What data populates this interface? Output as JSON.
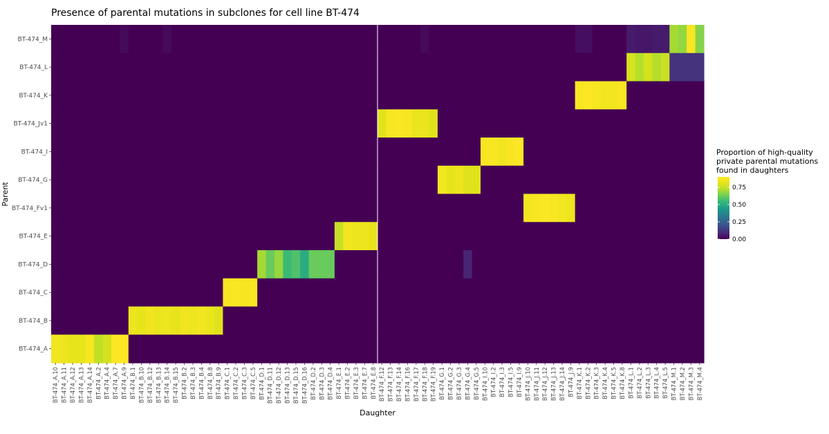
{
  "chart_data": {
    "type": "heatmap",
    "title": "Presence of parental mutations in subclones for cell line BT-474",
    "xlabel": "Daughter",
    "ylabel": "Parent",
    "legend": {
      "title_lines": [
        "Proportion of high-quality",
        "private parental mutations",
        "found in daughters"
      ],
      "ticks": [
        "0.75",
        "0.50",
        "0.25",
        "0.00"
      ],
      "tick_values": [
        0.75,
        0.5,
        0.25,
        0.0
      ],
      "range": [
        0,
        0.9
      ],
      "placement": "right"
    },
    "colors": {
      "viridis_low": "#440154",
      "viridis_mid": "#21908c",
      "viridis_high": "#fde725",
      "background_line": "#ffffff"
    },
    "grid": false,
    "parents": [
      "BT-474_M",
      "BT-474_L",
      "BT-474_K",
      "BT-474_Jv1",
      "BT-474_I",
      "BT-474_G",
      "BT-474_Fv1",
      "BT-474_E",
      "BT-474_D",
      "BT-474_C",
      "BT-474_B",
      "BT-474_A"
    ],
    "daughters": [
      "BT-474_A.10",
      "BT-474_A.11",
      "BT-474_A.12",
      "BT-474_A.13",
      "BT-474_A.14",
      "BT-474_A.2",
      "BT-474_A.4",
      "BT-474_A.7",
      "BT-474_A.9",
      "BT-474_B.1",
      "BT-474_B.10",
      "BT-474_B.12",
      "BT-474_B.13",
      "BT-474_B.14",
      "BT-474_B.15",
      "BT-474_B.2",
      "BT-474_B.3",
      "BT-474_B.4",
      "BT-474_B.8",
      "BT-474_B.9",
      "BT-474_C.1",
      "BT-474_C.2",
      "BT-474_C.3",
      "BT-474_C.5",
      "BT-474_D.1",
      "BT-474_D.11",
      "BT-474_D.12",
      "BT-474_D.13",
      "BT-474_D.15",
      "BT-474_D.16",
      "BT-474_D.2",
      "BT-474_D.3",
      "BT-474_D.4",
      "BT-474_E.1",
      "BT-474_E.2",
      "BT-474_E.3",
      "BT-474_E.7",
      "BT-474_E.8",
      "BT-474_F.12",
      "BT-474_F.13",
      "BT-474_F.14",
      "BT-474_F.16",
      "BT-474_F.17",
      "BT-474_F.18",
      "BT-474_F.19",
      "BT-474_G.1",
      "BT-474_G.2",
      "BT-474_G.3",
      "BT-474_G.4",
      "BT-474_G.5",
      "BT-474_I.10",
      "BT-474_I.2",
      "BT-474_I.3",
      "BT-474_I.5",
      "BT-474_I.9",
      "BT-474_J.10",
      "BT-474_J.11",
      "BT-474_J.12",
      "BT-474_J.13",
      "BT-474_J.14",
      "BT-474_J.9",
      "BT-474_K.1",
      "BT-474_K.2",
      "BT-474_K.3",
      "BT-474_K.4",
      "BT-474_K.5",
      "BT-474_K.8",
      "BT-474_L.1",
      "BT-474_L.2",
      "BT-474_L.3",
      "BT-474_L.4",
      "BT-474_L.5",
      "BT-474_M.1",
      "BT-474_M.2",
      "BT-474_M.3",
      "BT-474_M.4"
    ],
    "vertical_line_after": "BT-474_E.8",
    "default_value": 0.0,
    "cells": [
      {
        "parent": "BT-474_A",
        "values": {
          "BT-474_A.10": 0.86,
          "BT-474_A.11": 0.84,
          "BT-474_A.12": 0.82,
          "BT-474_A.13": 0.82,
          "BT-474_A.14": 0.88,
          "BT-474_A.2": 0.74,
          "BT-474_A.4": 0.78,
          "BT-474_A.7": 0.9,
          "BT-474_A.9": 0.9
        }
      },
      {
        "parent": "BT-474_B",
        "values": {
          "BT-474_B.1": 0.84,
          "BT-474_B.10": 0.82,
          "BT-474_B.12": 0.85,
          "BT-474_B.13": 0.83,
          "BT-474_B.14": 0.84,
          "BT-474_B.15": 0.82,
          "BT-474_B.2": 0.85,
          "BT-474_B.3": 0.84,
          "BT-474_B.4": 0.86,
          "BT-474_B.8": 0.83,
          "BT-474_B.9": 0.8
        }
      },
      {
        "parent": "BT-474_C",
        "values": {
          "BT-474_C.1": 0.88,
          "BT-474_C.2": 0.89,
          "BT-474_C.3": 0.87,
          "BT-474_C.5": 0.88
        }
      },
      {
        "parent": "BT-474_D",
        "values": {
          "BT-474_D.1": 0.7,
          "BT-474_D.11": 0.62,
          "BT-474_D.12": 0.68,
          "BT-474_D.13": 0.55,
          "BT-474_D.15": 0.58,
          "BT-474_D.16": 0.5,
          "BT-474_D.2": 0.62,
          "BT-474_D.3": 0.62,
          "BT-474_D.4": 0.62
        }
      },
      {
        "parent": "BT-474_E",
        "values": {
          "BT-474_E.1": 0.75,
          "BT-474_E.2": 0.86,
          "BT-474_E.3": 0.84,
          "BT-474_E.7": 0.84,
          "BT-474_E.8": 0.82
        }
      },
      {
        "parent": "BT-474_Jv1",
        "values": {
          "BT-474_F.12": 0.8,
          "BT-474_F.13": 0.88,
          "BT-474_F.14": 0.89,
          "BT-474_F.16": 0.88,
          "BT-474_F.17": 0.83,
          "BT-474_F.18": 0.83,
          "BT-474_F.19": 0.8
        }
      },
      {
        "parent": "BT-474_G",
        "values": {
          "BT-474_G.1": 0.86,
          "BT-474_G.2": 0.82,
          "BT-474_G.3": 0.84,
          "BT-474_G.4": 0.8,
          "BT-474_G.5": 0.8
        }
      },
      {
        "parent": "BT-474_D",
        "values": {
          "BT-474_G.4": 0.08
        }
      },
      {
        "parent": "BT-474_I",
        "values": {
          "BT-474_I.10": 0.88,
          "BT-474_I.2": 0.88,
          "BT-474_I.3": 0.85,
          "BT-474_I.5": 0.88,
          "BT-474_I.9": 0.9
        }
      },
      {
        "parent": "BT-474_Fv1",
        "values": {
          "BT-474_J.10": 0.86,
          "BT-474_J.11": 0.88,
          "BT-474_J.12": 0.9,
          "BT-474_J.13": 0.88,
          "BT-474_J.14": 0.86,
          "BT-474_J.9": 0.84
        }
      },
      {
        "parent": "BT-474_K",
        "values": {
          "BT-474_K.1": 0.88,
          "BT-474_K.2": 0.9,
          "BT-474_K.3": 0.88,
          "BT-474_K.4": 0.86,
          "BT-474_K.5": 0.86,
          "BT-474_K.8": 0.88
        }
      },
      {
        "parent": "BT-474_L",
        "values": {
          "BT-474_L.1": 0.78,
          "BT-474_L.2": 0.72,
          "BT-474_L.3": 0.78,
          "BT-474_L.4": 0.72,
          "BT-474_L.5": 0.76,
          "BT-474_M.1": 0.12,
          "BT-474_M.2": 0.12,
          "BT-474_M.3": 0.12,
          "BT-474_M.4": 0.12
        }
      },
      {
        "parent": "BT-474_M",
        "values": {
          "BT-474_M.1": 0.7,
          "BT-474_M.2": 0.68,
          "BT-474_M.3": 0.88,
          "BT-474_M.4": 0.66,
          "BT-474_L.1": 0.06,
          "BT-474_L.2": 0.05,
          "BT-474_L.3": 0.05,
          "BT-474_L.4": 0.06,
          "BT-474_L.5": 0.06,
          "BT-474_K.1": 0.03,
          "BT-474_K.2": 0.03,
          "BT-474_A.9": 0.02,
          "BT-474_B.14": 0.02,
          "BT-474_F.18": 0.02
        }
      }
    ]
  }
}
